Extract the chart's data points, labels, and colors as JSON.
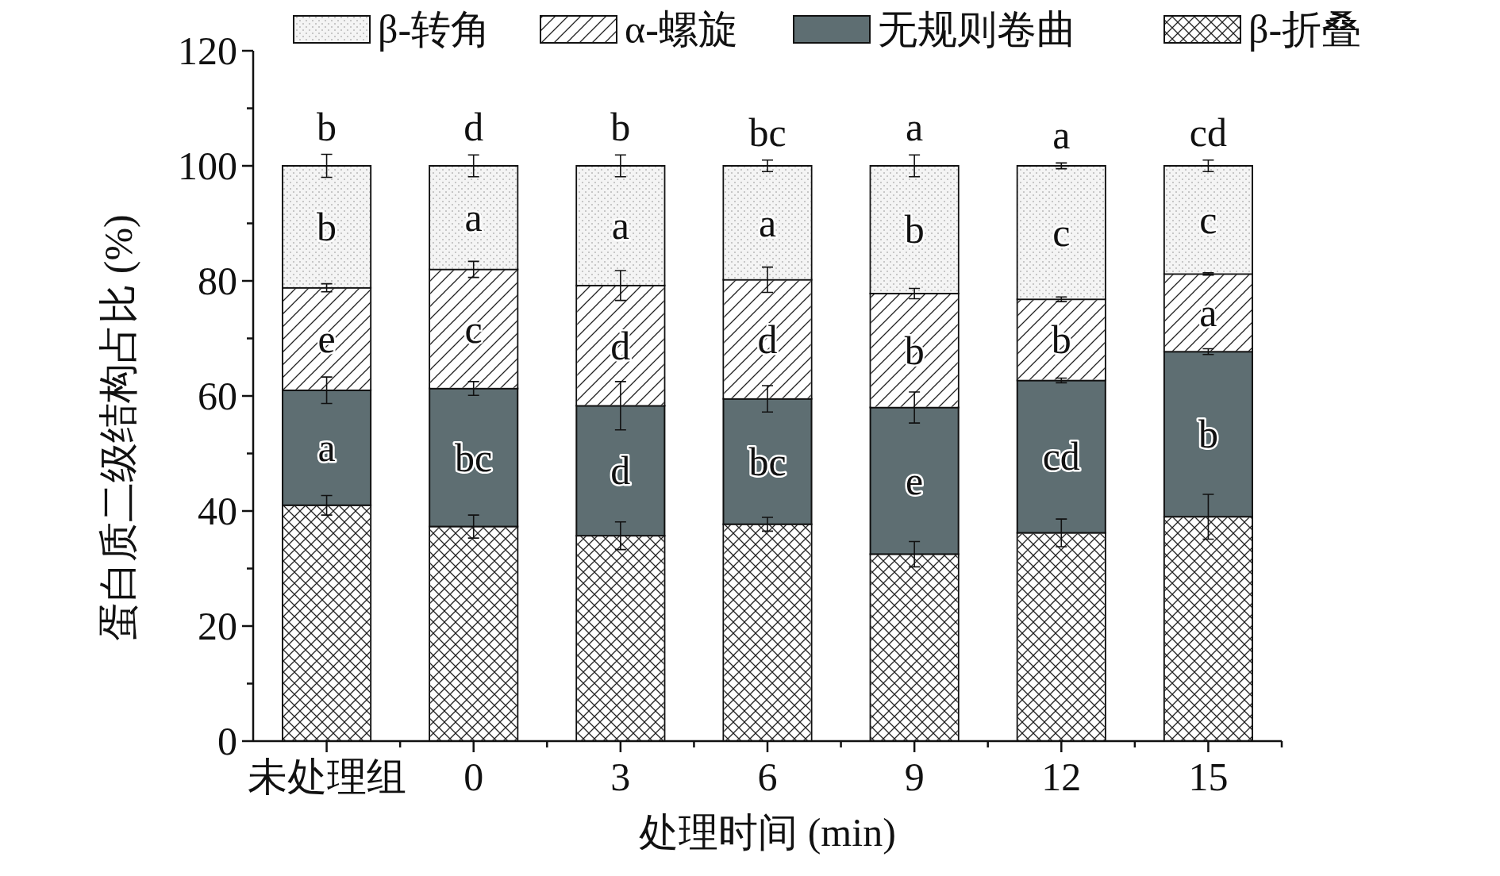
{
  "chart_data": {
    "type": "bar",
    "stacked": true,
    "xlabel": "处理时间 (min)",
    "ylabel": "蛋白质二级结构占比 (%)",
    "categories": [
      "未处理组",
      "0",
      "3",
      "6",
      "9",
      "12",
      "15"
    ],
    "ylim": [
      0,
      120
    ],
    "yticks": [
      0,
      20,
      40,
      60,
      80,
      100,
      120
    ],
    "legend": "top",
    "series": [
      {
        "name": "β-折叠",
        "color": "#ffffff",
        "values": [
          41.0,
          37.3,
          35.7,
          37.7,
          32.5,
          36.2,
          39.0
        ],
        "errors": [
          1.7,
          2.0,
          2.4,
          1.2,
          2.2,
          2.4,
          3.9
        ]
      },
      {
        "name": "无规则卷曲",
        "color": "#5e6e72",
        "values": [
          20.0,
          24.0,
          22.6,
          21.8,
          25.5,
          26.5,
          28.7
        ],
        "errors": [
          2.3,
          1.2,
          4.2,
          2.3,
          2.7,
          0.4,
          0.5
        ]
      },
      {
        "name": "α-螺旋",
        "color": "#ffffff",
        "values": [
          17.8,
          20.7,
          20.9,
          20.7,
          19.8,
          14.1,
          13.5
        ],
        "errors": [
          0.7,
          1.4,
          2.6,
          2.2,
          0.9,
          0.4,
          0.2
        ]
      },
      {
        "name": "β-转角",
        "color": "#f4f4f4",
        "values": [
          21.2,
          18.0,
          20.8,
          19.8,
          22.2,
          23.2,
          18.8
        ],
        "errors": [
          2.0,
          1.9,
          1.9,
          1.0,
          1.9,
          0.5,
          1.0
        ]
      }
    ],
    "annotations": [
      "b",
      "d",
      "b",
      "bc",
      "a",
      "a",
      "cd",
      "b",
      "a",
      "a",
      "a",
      "b",
      "c",
      "c",
      "e",
      "c",
      "d",
      "d",
      "b",
      "b",
      "a",
      "a",
      "bc",
      "d",
      "bc",
      "e",
      "cd",
      "b"
    ]
  }
}
